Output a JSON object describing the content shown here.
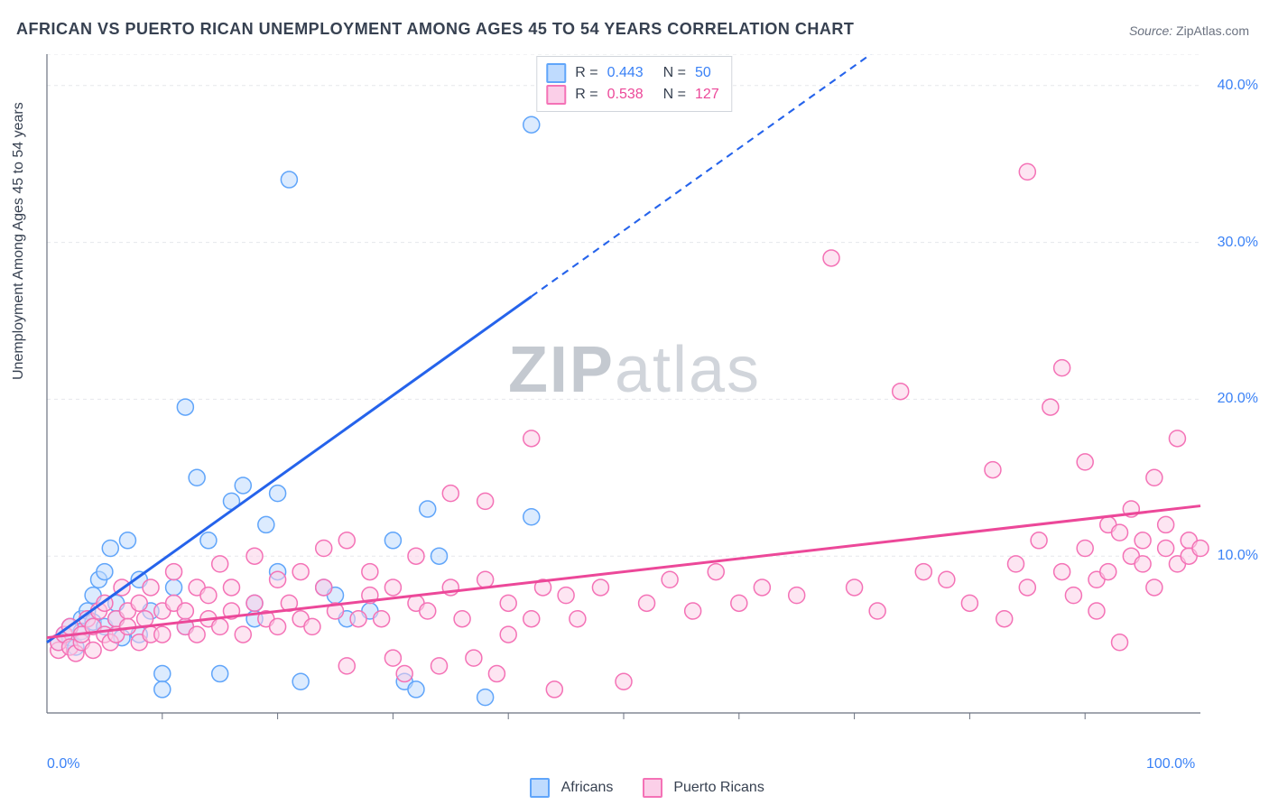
{
  "title": "AFRICAN VS PUERTO RICAN UNEMPLOYMENT AMONG AGES 45 TO 54 YEARS CORRELATION CHART",
  "source": {
    "label": "Source:",
    "name": "ZipAtlas.com"
  },
  "watermark": {
    "part1": "ZIP",
    "part2": "atlas"
  },
  "ylabel": "Unemployment Among Ages 45 to 54 years",
  "chart": {
    "type": "scatter",
    "xlim": [
      0,
      100
    ],
    "ylim": [
      0,
      42
    ],
    "y_ticks": [
      10,
      20,
      30,
      40
    ],
    "y_tick_labels": [
      "10.0%",
      "20.0%",
      "30.0%",
      "40.0%"
    ],
    "y_tick_color": "#3b82f6",
    "x_minmax_labels": [
      "0.0%",
      "100.0%"
    ],
    "x_label_color": "#3b82f6",
    "x_minorticks": [
      10,
      20,
      30,
      40,
      50,
      60,
      70,
      80,
      90
    ],
    "grid_color": "#e5e7eb",
    "axis_color": "#6b7280",
    "background_color": "#ffffff",
    "series": [
      {
        "id": "africans",
        "label": "Africans",
        "marker_fill": "#bfdbfe",
        "marker_stroke": "#60a5fa",
        "marker_fill_opacity": 0.55,
        "marker_radius": 9,
        "stats": {
          "R": "0.443",
          "N": "50",
          "num_color": "#3b82f6"
        },
        "trend": {
          "y0": 4.5,
          "y100": 57,
          "solid_until_x": 42,
          "stroke": "#2563eb",
          "width": 3
        },
        "points": [
          [
            1,
            4.5
          ],
          [
            1.5,
            5
          ],
          [
            2,
            4.8
          ],
          [
            2,
            5.5
          ],
          [
            2.5,
            4.2
          ],
          [
            3,
            6
          ],
          [
            3,
            5.2
          ],
          [
            3.5,
            6.5
          ],
          [
            4,
            5.8
          ],
          [
            4,
            7.5
          ],
          [
            4.5,
            8.5
          ],
          [
            5,
            5.5
          ],
          [
            5,
            9
          ],
          [
            5.5,
            10.5
          ],
          [
            6,
            7
          ],
          [
            6,
            6
          ],
          [
            6.5,
            4.8
          ],
          [
            7,
            11
          ],
          [
            8,
            5
          ],
          [
            8,
            8.5
          ],
          [
            9,
            6.5
          ],
          [
            10,
            2.5
          ],
          [
            10,
            1.5
          ],
          [
            11,
            8
          ],
          [
            12,
            5.5
          ],
          [
            12,
            19.5
          ],
          [
            13,
            15
          ],
          [
            14,
            11
          ],
          [
            15,
            2.5
          ],
          [
            16,
            13.5
          ],
          [
            17,
            14.5
          ],
          [
            18,
            7
          ],
          [
            18,
            6
          ],
          [
            19,
            12
          ],
          [
            20,
            14
          ],
          [
            20,
            9
          ],
          [
            21,
            34
          ],
          [
            22,
            2
          ],
          [
            24,
            8
          ],
          [
            25,
            7.5
          ],
          [
            26,
            6
          ],
          [
            28,
            6.5
          ],
          [
            30,
            11
          ],
          [
            31,
            2
          ],
          [
            32,
            1.5
          ],
          [
            33,
            13
          ],
          [
            34,
            10
          ],
          [
            38,
            1
          ],
          [
            42,
            37.5
          ],
          [
            42,
            12.5
          ]
        ]
      },
      {
        "id": "puerto_ricans",
        "label": "Puerto Ricans",
        "marker_fill": "#fbcfe8",
        "marker_stroke": "#f472b6",
        "marker_fill_opacity": 0.55,
        "marker_radius": 9,
        "stats": {
          "R": "0.538",
          "N": "127",
          "num_color": "#ec4899"
        },
        "trend": {
          "y0": 4.8,
          "y100": 13.2,
          "solid_until_x": 100,
          "stroke": "#ec4899",
          "width": 3
        },
        "points": [
          [
            1,
            4
          ],
          [
            1,
            4.5
          ],
          [
            1.5,
            5
          ],
          [
            2,
            4.2
          ],
          [
            2,
            5.5
          ],
          [
            2.5,
            3.8
          ],
          [
            3,
            4.5
          ],
          [
            3,
            5
          ],
          [
            3.5,
            6
          ],
          [
            4,
            5.5
          ],
          [
            4,
            4
          ],
          [
            4.5,
            6.5
          ],
          [
            5,
            5
          ],
          [
            5,
            7
          ],
          [
            5.5,
            4.5
          ],
          [
            6,
            6
          ],
          [
            6,
            5
          ],
          [
            6.5,
            8
          ],
          [
            7,
            6.5
          ],
          [
            7,
            5.5
          ],
          [
            8,
            7
          ],
          [
            8,
            4.5
          ],
          [
            8.5,
            6
          ],
          [
            9,
            5
          ],
          [
            9,
            8
          ],
          [
            10,
            6.5
          ],
          [
            10,
            5
          ],
          [
            11,
            7
          ],
          [
            11,
            9
          ],
          [
            12,
            5.5
          ],
          [
            12,
            6.5
          ],
          [
            13,
            8
          ],
          [
            13,
            5
          ],
          [
            14,
            7.5
          ],
          [
            14,
            6
          ],
          [
            15,
            5.5
          ],
          [
            15,
            9.5
          ],
          [
            16,
            6.5
          ],
          [
            16,
            8
          ],
          [
            17,
            5
          ],
          [
            18,
            7
          ],
          [
            18,
            10
          ],
          [
            19,
            6
          ],
          [
            20,
            8.5
          ],
          [
            20,
            5.5
          ],
          [
            21,
            7
          ],
          [
            22,
            6
          ],
          [
            22,
            9
          ],
          [
            23,
            5.5
          ],
          [
            24,
            8
          ],
          [
            24,
            10.5
          ],
          [
            25,
            6.5
          ],
          [
            26,
            11
          ],
          [
            26,
            3
          ],
          [
            27,
            6
          ],
          [
            28,
            9
          ],
          [
            28,
            7.5
          ],
          [
            29,
            6
          ],
          [
            30,
            8
          ],
          [
            30,
            3.5
          ],
          [
            31,
            2.5
          ],
          [
            32,
            7
          ],
          [
            32,
            10
          ],
          [
            33,
            6.5
          ],
          [
            34,
            3
          ],
          [
            35,
            14
          ],
          [
            35,
            8
          ],
          [
            36,
            6
          ],
          [
            37,
            3.5
          ],
          [
            38,
            8.5
          ],
          [
            38,
            13.5
          ],
          [
            39,
            2.5
          ],
          [
            40,
            7
          ],
          [
            40,
            5
          ],
          [
            42,
            17.5
          ],
          [
            42,
            6
          ],
          [
            43,
            8
          ],
          [
            44,
            1.5
          ],
          [
            45,
            7.5
          ],
          [
            46,
            6
          ],
          [
            48,
            8
          ],
          [
            50,
            2
          ],
          [
            52,
            7
          ],
          [
            54,
            8.5
          ],
          [
            56,
            6.5
          ],
          [
            58,
            9
          ],
          [
            60,
            7
          ],
          [
            62,
            8
          ],
          [
            65,
            7.5
          ],
          [
            68,
            29
          ],
          [
            70,
            8
          ],
          [
            72,
            6.5
          ],
          [
            74,
            20.5
          ],
          [
            76,
            9
          ],
          [
            78,
            8.5
          ],
          [
            80,
            7
          ],
          [
            82,
            15.5
          ],
          [
            83,
            6
          ],
          [
            84,
            9.5
          ],
          [
            85,
            34.5
          ],
          [
            85,
            8
          ],
          [
            86,
            11
          ],
          [
            87,
            19.5
          ],
          [
            88,
            9
          ],
          [
            88,
            22
          ],
          [
            89,
            7.5
          ],
          [
            90,
            10.5
          ],
          [
            90,
            16
          ],
          [
            91,
            8.5
          ],
          [
            91,
            6.5
          ],
          [
            92,
            12
          ],
          [
            92,
            9
          ],
          [
            93,
            11.5
          ],
          [
            93,
            4.5
          ],
          [
            94,
            10
          ],
          [
            94,
            13
          ],
          [
            95,
            9.5
          ],
          [
            95,
            11
          ],
          [
            96,
            8
          ],
          [
            96,
            15
          ],
          [
            97,
            10.5
          ],
          [
            97,
            12
          ],
          [
            98,
            17.5
          ],
          [
            98,
            9.5
          ],
          [
            99,
            11
          ],
          [
            99,
            10
          ],
          [
            100,
            10.5
          ]
        ]
      }
    ]
  }
}
